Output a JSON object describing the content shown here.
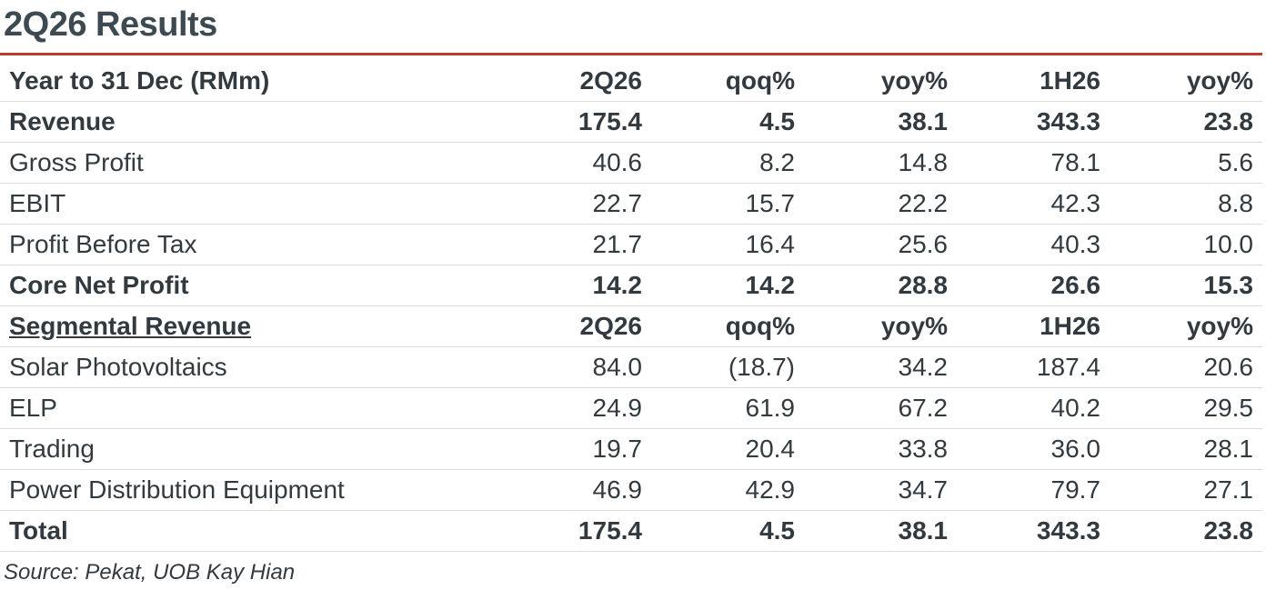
{
  "title": "2Q26 Results",
  "source": "Source: Pekat, UOB Kay Hian",
  "header": {
    "label": "Year to 31 Dec (RMm)",
    "cols": [
      "2Q26",
      "qoq%",
      "yoy%",
      "1H26",
      "yoy%"
    ]
  },
  "rows": [
    {
      "label": "Revenue",
      "values": [
        "175.4",
        "4.5",
        "38.1",
        "343.3",
        "23.8"
      ]
    },
    {
      "label": "Gross Profit",
      "values": [
        "40.6",
        "8.2",
        "14.8",
        "78.1",
        "5.6"
      ]
    },
    {
      "label": "EBIT",
      "values": [
        "22.7",
        "15.7",
        "22.2",
        "42.3",
        "8.8"
      ]
    },
    {
      "label": "Profit Before Tax",
      "values": [
        "21.7",
        "16.4",
        "25.6",
        "40.3",
        "10.0"
      ]
    },
    {
      "label": "Core Net Profit",
      "values": [
        "14.2",
        "14.2",
        "28.8",
        "26.6",
        "15.3"
      ]
    },
    {
      "label": "Segmental Revenue",
      "values": [
        "2Q26",
        "qoq%",
        "yoy%",
        "1H26",
        "yoy%"
      ]
    },
    {
      "label": "Solar Photovoltaics",
      "values": [
        "84.0",
        "(18.7)",
        "34.2",
        "187.4",
        "20.6"
      ]
    },
    {
      "label": "ELP",
      "values": [
        "24.9",
        "61.9",
        "67.2",
        "40.2",
        "29.5"
      ]
    },
    {
      "label": "Trading",
      "values": [
        "19.7",
        "20.4",
        "33.8",
        "36.0",
        "28.1"
      ]
    },
    {
      "label": "Power Distribution Equipment",
      "values": [
        "46.9",
        "42.9",
        "34.7",
        "79.7",
        "27.1"
      ]
    },
    {
      "label": "Total",
      "values": [
        "175.4",
        "4.5",
        "38.1",
        "343.3",
        "23.8"
      ]
    }
  ]
}
